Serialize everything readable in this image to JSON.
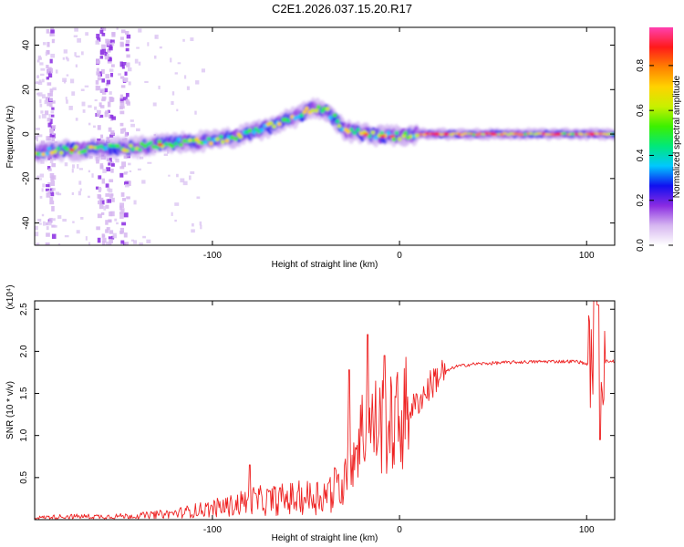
{
  "title": "C2E1.2026.037.15.20.R17",
  "chart_data": [
    {
      "type": "heatmap",
      "name": "spectrogram",
      "xlabel": "Height of straight line (km)",
      "ylabel": "Frequency (Hz)",
      "xlim": [
        -195,
        115
      ],
      "ylim": [
        -50,
        48
      ],
      "xticks": [
        -100,
        0,
        100
      ],
      "yticks": [
        -40,
        -20,
        0,
        20,
        40
      ],
      "xtick_labels": [
        "-100",
        "0",
        "100"
      ],
      "ytick_labels": [
        "-40",
        "-20",
        "0",
        "20",
        "40"
      ],
      "ridge": {
        "x": [
          -195,
          -170,
          -140,
          -120,
          -100,
          -85,
          -70,
          -55,
          -45,
          -38,
          -30,
          -20,
          -10,
          0,
          10,
          20,
          40,
          60,
          80,
          100,
          115
        ],
        "y": [
          -8,
          -7,
          -6,
          -4,
          -3,
          -1,
          3,
          8,
          12,
          10,
          2,
          0,
          -1,
          -1,
          0,
          0,
          0,
          0,
          0,
          0,
          0
        ]
      },
      "colorbar": {
        "label": "Normalized spectral amplitude",
        "range": [
          0.0,
          0.97
        ],
        "ticks": [
          0.0,
          0.2,
          0.4,
          0.6,
          0.8
        ],
        "tick_labels": [
          "0.0",
          "0.2",
          "0.4",
          "0.6",
          "0.8"
        ],
        "colors": [
          "#ffffff",
          "#d6b6f0",
          "#8a2be2",
          "#1010f0",
          "#00c8ff",
          "#00e87a",
          "#3cf000",
          "#c8f000",
          "#ffd200",
          "#ff8000",
          "#ff1a1a",
          "#ff40b0"
        ]
      }
    },
    {
      "type": "line",
      "name": "snr",
      "xlabel": "Height of straight line (km)",
      "ylabel": "SNR (10 * v/v)",
      "scale_label": "(x10⁴)",
      "xlim": [
        -195,
        115
      ],
      "ylim": [
        0,
        2.6
      ],
      "xticks": [
        -100,
        0,
        100
      ],
      "yticks": [
        0.5,
        1.0,
        1.5,
        2.0,
        2.5
      ],
      "xtick_labels": [
        "-100",
        "0",
        "100"
      ],
      "ytick_labels": [
        "0.5",
        "1.0",
        "1.5",
        "2.0",
        "2.5"
      ],
      "color": "#ee2222",
      "series": {
        "x": [
          -195,
          -180,
          -160,
          -140,
          -120,
          -100,
          -90,
          -80,
          -70,
          -60,
          -50,
          -40,
          -30,
          -25,
          -20,
          -15,
          -10,
          -5,
          0,
          10,
          20,
          30,
          40,
          60,
          80,
          95,
          100,
          103,
          105,
          108,
          110,
          115
        ],
        "y": [
          0.03,
          0.05,
          0.05,
          0.06,
          0.1,
          0.18,
          0.22,
          0.3,
          0.3,
          0.33,
          0.35,
          0.4,
          0.55,
          0.8,
          1.05,
          1.1,
          1.15,
          1.1,
          1.2,
          1.4,
          1.7,
          1.82,
          1.85,
          1.87,
          1.88,
          1.88,
          1.85,
          1.9,
          2.5,
          1.85,
          1.88,
          1.88
        ]
      },
      "peaks": [
        {
          "x": -80,
          "y": 0.65
        },
        {
          "x": -27,
          "y": 1.78
        },
        {
          "x": -17,
          "y": 2.2
        },
        {
          "x": -8,
          "y": 1.95
        },
        {
          "x": 106,
          "y": 2.55
        },
        {
          "x": 107,
          "y": 0.95
        }
      ]
    }
  ]
}
